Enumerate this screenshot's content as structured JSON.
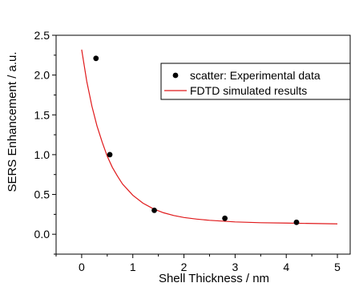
{
  "chart_data": {
    "type": "scatter",
    "xlabel": "Shell Thickness / nm",
    "ylabel": "SERS Enhancement / a.u.",
    "xlim": [
      -0.5,
      5.25
    ],
    "ylim": [
      -0.25,
      2.5
    ],
    "x_ticks": [
      0,
      1,
      2,
      3,
      4,
      5
    ],
    "x_tick_labels": [
      "0",
      "1",
      "2",
      "3",
      "4",
      "5"
    ],
    "y_ticks": [
      0.0,
      0.5,
      1.0,
      1.5,
      2.0,
      2.5
    ],
    "y_tick_labels": [
      "0.0",
      "0.5",
      "1.0",
      "1.5",
      "2.0",
      "2.5"
    ],
    "grid": false,
    "legend_position": "upper-right",
    "colors": {
      "scatter": "#000000",
      "line": "#e0191b",
      "axis": "#000000"
    },
    "series": [
      {
        "name": "scatter: Experimental data",
        "kind": "scatter",
        "x": [
          0.28,
          0.55,
          1.42,
          2.8,
          4.2
        ],
        "y": [
          2.21,
          1.0,
          0.3,
          0.2,
          0.15
        ]
      },
      {
        "name": "FDTD simulated results",
        "kind": "line",
        "x": [
          0,
          0.1,
          0.2,
          0.3,
          0.4,
          0.5,
          0.6,
          0.7,
          0.8,
          0.9,
          1.0,
          1.2,
          1.4,
          1.6,
          1.8,
          2.0,
          2.25,
          2.5,
          2.75,
          3.0,
          3.5,
          4.0,
          4.5,
          5.0
        ],
        "y": [
          2.32,
          1.92,
          1.61,
          1.36,
          1.16,
          0.98,
          0.84,
          0.73,
          0.63,
          0.56,
          0.49,
          0.39,
          0.32,
          0.27,
          0.235,
          0.21,
          0.19,
          0.175,
          0.165,
          0.155,
          0.145,
          0.14,
          0.135,
          0.13
        ]
      }
    ]
  }
}
